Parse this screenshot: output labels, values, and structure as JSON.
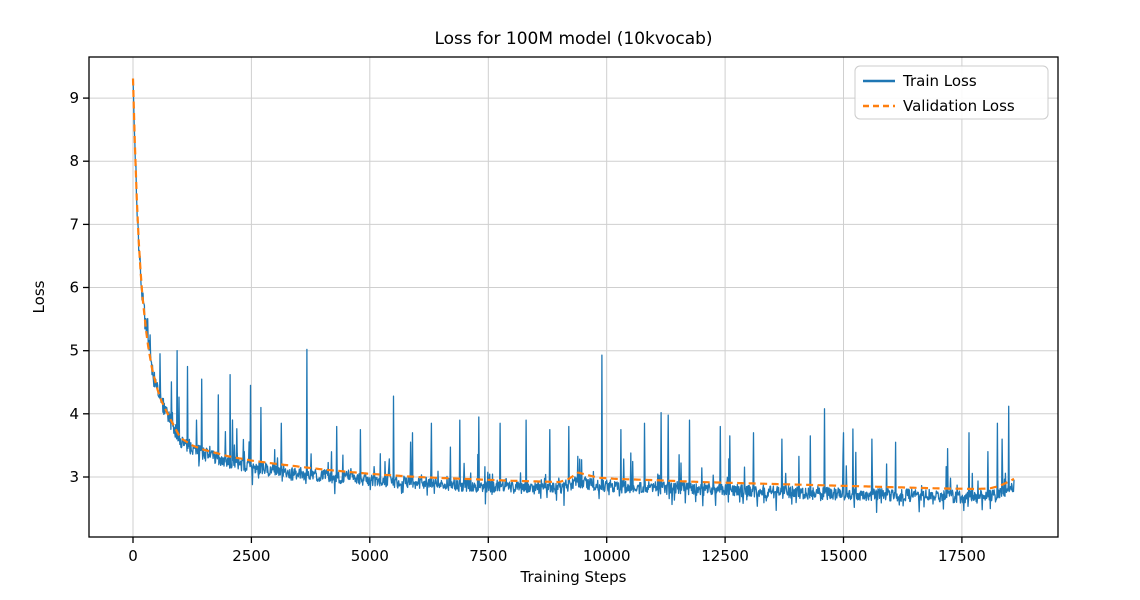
{
  "chart_data": {
    "type": "line",
    "title": "Loss for 100M model (10kvocab)",
    "xlabel": "Training Steps",
    "ylabel": "Loss",
    "xlim": [
      -930,
      19530
    ],
    "ylim": [
      2.05,
      9.65
    ],
    "x_ticks": [
      0,
      2500,
      5000,
      7500,
      10000,
      12500,
      15000,
      17500
    ],
    "y_ticks": [
      3,
      4,
      5,
      6,
      7,
      8,
      9
    ],
    "grid": true,
    "steps_range": [
      0,
      18600
    ],
    "colors": {
      "train": "#1f77b4",
      "validation": "#ff7f0e",
      "grid": "#cfcfcf",
      "axis": "#000000",
      "background": "#ffffff"
    },
    "legend": {
      "position": "upper right",
      "entries": [
        {
          "label": "Train Loss",
          "color": "#1f77b4",
          "style": "solid"
        },
        {
          "label": "Validation Loss",
          "color": "#ff7f0e",
          "style": "dashed"
        }
      ]
    },
    "series": [
      {
        "name": "Train Loss",
        "kind": "noisy",
        "baseline": [
          [
            0,
            9.31
          ],
          [
            50,
            8.0
          ],
          [
            100,
            7.0
          ],
          [
            150,
            6.35
          ],
          [
            200,
            5.85
          ],
          [
            300,
            5.15
          ],
          [
            400,
            4.7
          ],
          [
            500,
            4.4
          ],
          [
            600,
            4.18
          ],
          [
            800,
            3.88
          ],
          [
            1000,
            3.58
          ],
          [
            1250,
            3.45
          ],
          [
            1500,
            3.36
          ],
          [
            2000,
            3.24
          ],
          [
            2500,
            3.16
          ],
          [
            3000,
            3.1
          ],
          [
            4000,
            3.02
          ],
          [
            5000,
            2.96
          ],
          [
            6000,
            2.9
          ],
          [
            7000,
            2.87
          ],
          [
            8000,
            2.84
          ],
          [
            9000,
            2.82
          ],
          [
            9300,
            2.9
          ],
          [
            9500,
            2.92
          ],
          [
            9800,
            2.87
          ],
          [
            10500,
            2.84
          ],
          [
            11500,
            2.82
          ],
          [
            13000,
            2.78
          ],
          [
            14500,
            2.74
          ],
          [
            16000,
            2.72
          ],
          [
            17000,
            2.7
          ],
          [
            17800,
            2.68
          ],
          [
            18200,
            2.72
          ],
          [
            18450,
            2.8
          ],
          [
            18600,
            2.86
          ]
        ],
        "spikes": [
          [
            300,
            5.5
          ],
          [
            360,
            5.25
          ],
          [
            570,
            4.95
          ],
          [
            930,
            5.0
          ],
          [
            1150,
            4.75
          ],
          [
            1450,
            4.55
          ],
          [
            1800,
            4.3
          ],
          [
            2050,
            4.62
          ],
          [
            2480,
            4.45
          ],
          [
            2700,
            4.1
          ],
          [
            3130,
            3.85
          ],
          [
            3670,
            5.02
          ],
          [
            4300,
            3.8
          ],
          [
            4800,
            3.75
          ],
          [
            5500,
            4.28
          ],
          [
            5900,
            3.7
          ],
          [
            6300,
            3.85
          ],
          [
            6900,
            3.9
          ],
          [
            7300,
            3.95
          ],
          [
            7750,
            3.85
          ],
          [
            8300,
            3.9
          ],
          [
            8800,
            3.75
          ],
          [
            9200,
            3.8
          ],
          [
            9900,
            4.93
          ],
          [
            10300,
            3.75
          ],
          [
            10800,
            3.85
          ],
          [
            11150,
            4.02
          ],
          [
            11300,
            3.98
          ],
          [
            11750,
            3.9
          ],
          [
            12400,
            3.8
          ],
          [
            12600,
            3.65
          ],
          [
            13100,
            3.7
          ],
          [
            13700,
            3.6
          ],
          [
            14300,
            3.65
          ],
          [
            14600,
            4.08
          ],
          [
            15000,
            3.7
          ],
          [
            15200,
            3.76
          ],
          [
            15600,
            3.6
          ],
          [
            16100,
            3.55
          ],
          [
            16600,
            3.6
          ],
          [
            17200,
            3.45
          ],
          [
            17650,
            3.7
          ],
          [
            18050,
            3.4
          ],
          [
            18250,
            3.85
          ],
          [
            18350,
            3.6
          ],
          [
            18490,
            4.12
          ]
        ],
        "dips": [
          [
            9100,
            2.55
          ],
          [
            12300,
            2.55
          ],
          [
            15700,
            2.44
          ],
          [
            16600,
            2.45
          ],
          [
            17540,
            2.47
          ],
          [
            18100,
            2.5
          ]
        ],
        "noise": {
          "seed": 7,
          "band": 0.1,
          "spike_prob": 0.09,
          "spike_amp": 0.62,
          "dip_prob": 0.04,
          "early_tau": 900,
          "early_amp": 1.2,
          "stride": 10
        },
        "value_min": 2.4,
        "value_max": 9.31
      },
      {
        "name": "Validation Loss",
        "kind": "smooth",
        "points": [
          [
            0,
            9.31
          ],
          [
            50,
            8.0
          ],
          [
            100,
            7.0
          ],
          [
            150,
            6.35
          ],
          [
            200,
            5.85
          ],
          [
            300,
            5.15
          ],
          [
            400,
            4.72
          ],
          [
            500,
            4.42
          ],
          [
            600,
            4.2
          ],
          [
            800,
            3.9
          ],
          [
            1000,
            3.62
          ],
          [
            1250,
            3.5
          ],
          [
            1500,
            3.43
          ],
          [
            2000,
            3.33
          ],
          [
            2500,
            3.26
          ],
          [
            3000,
            3.21
          ],
          [
            4000,
            3.12
          ],
          [
            5000,
            3.05
          ],
          [
            6000,
            3.0
          ],
          [
            7000,
            2.97
          ],
          [
            8000,
            2.94
          ],
          [
            9000,
            2.92
          ],
          [
            9200,
            2.97
          ],
          [
            9400,
            3.07
          ],
          [
            9600,
            3.03
          ],
          [
            9800,
            2.99
          ],
          [
            10200,
            2.97
          ],
          [
            11000,
            2.95
          ],
          [
            12000,
            2.92
          ],
          [
            13000,
            2.9
          ],
          [
            14500,
            2.87
          ],
          [
            16000,
            2.84
          ],
          [
            17000,
            2.82
          ],
          [
            17800,
            2.81
          ],
          [
            18100,
            2.82
          ],
          [
            18300,
            2.86
          ],
          [
            18500,
            2.93
          ],
          [
            18600,
            2.97
          ]
        ]
      }
    ]
  }
}
